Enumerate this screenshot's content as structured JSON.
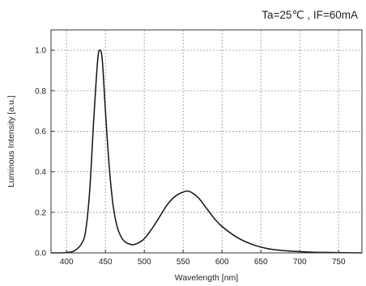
{
  "chart_data": {
    "type": "line",
    "title": "",
    "condition_label": "Ta=25℃ , IF=60mA",
    "xlabel": "Wavelength [nm]",
    "ylabel": "Luminous Intensity [a.u.]",
    "xlim": [
      380,
      780
    ],
    "ylim": [
      0,
      1.1
    ],
    "x_ticks": [
      400,
      450,
      500,
      550,
      600,
      650,
      700,
      750
    ],
    "y_ticks": [
      0.0,
      0.2,
      0.4,
      0.6,
      0.8,
      1.0
    ],
    "x_tick_labels": [
      "400",
      "450",
      "500",
      "550",
      "600",
      "650",
      "700",
      "750"
    ],
    "y_tick_labels": [
      "0.0",
      "0.2",
      "0.4",
      "0.6",
      "0.8",
      "1.0"
    ],
    "grid": true,
    "line_color": "#111111",
    "series": [
      {
        "x": [
          380,
          390,
          400,
          410,
          420,
          425,
          430,
          435,
          440,
          443,
          446,
          450,
          455,
          460,
          465,
          470,
          475,
          480,
          485,
          490,
          495,
          500,
          510,
          520,
          530,
          540,
          550,
          555,
          560,
          570,
          580,
          590,
          600,
          620,
          640,
          660,
          680,
          700,
          720,
          740,
          760,
          780
        ],
        "y": [
          0.0,
          0.0,
          0.002,
          0.01,
          0.05,
          0.12,
          0.32,
          0.66,
          0.95,
          1.0,
          0.95,
          0.7,
          0.42,
          0.23,
          0.13,
          0.08,
          0.055,
          0.045,
          0.04,
          0.045,
          0.055,
          0.07,
          0.12,
          0.18,
          0.24,
          0.28,
          0.3,
          0.305,
          0.3,
          0.27,
          0.22,
          0.17,
          0.13,
          0.075,
          0.04,
          0.02,
          0.011,
          0.006,
          0.003,
          0.002,
          0.001,
          0.0
        ]
      }
    ]
  }
}
